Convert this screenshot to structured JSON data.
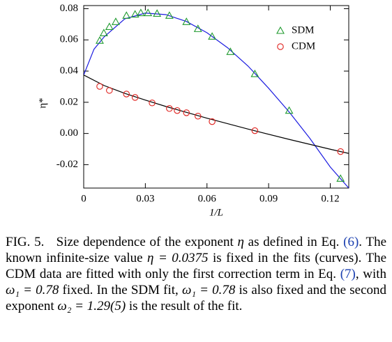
{
  "chart_data": {
    "type": "scatter",
    "xlabel": "1/L",
    "ylabel": "η*",
    "xlim": [
      0,
      0.129
    ],
    "ylim": [
      -0.035,
      0.082
    ],
    "xticks": [
      0,
      0.03,
      0.06,
      0.09,
      0.12
    ],
    "yticks": [
      -0.02,
      {
        "value": 0,
        "label": "0.00"
      },
      0.02,
      0.04,
      0.06,
      0.08
    ],
    "legend": "upper right",
    "series": [
      {
        "name": "SDM",
        "color": "#1f9a2e",
        "marker": "triangle",
        "x": [
          0.0078,
          0.0098,
          0.0125,
          0.0156,
          0.0208,
          0.025,
          0.0278,
          0.0313,
          0.0357,
          0.0417,
          0.05,
          0.0556,
          0.0625,
          0.0714,
          0.0833,
          0.1,
          0.125
        ],
        "values": [
          0.0596,
          0.0644,
          0.0684,
          0.0716,
          0.0756,
          0.0764,
          0.0773,
          0.0773,
          0.0769,
          0.0756,
          0.0716,
          0.0671,
          0.0622,
          0.0524,
          0.0382,
          0.0147,
          -0.0289
        ]
      },
      {
        "name": "CDM",
        "color": "#e0201c",
        "marker": "circle",
        "x": [
          0.0078,
          0.0125,
          0.0208,
          0.025,
          0.0333,
          0.0417,
          0.0455,
          0.05,
          0.0556,
          0.0625,
          0.0833,
          0.125
        ],
        "values": [
          0.0302,
          0.0276,
          0.0253,
          0.0231,
          0.0196,
          0.016,
          0.0147,
          0.0133,
          0.0111,
          0.0076,
          0.0018,
          -0.0116
        ]
      }
    ],
    "fits": [
      {
        "color": "#1c1ce0",
        "x": [
          0,
          0.005,
          0.01,
          0.02,
          0.03,
          0.04,
          0.05,
          0.06,
          0.07,
          0.08,
          0.09,
          0.1,
          0.11,
          0.12,
          0.129
        ],
        "values": [
          0.0375,
          0.054,
          0.062,
          0.0735,
          0.0772,
          0.0762,
          0.0718,
          0.0646,
          0.055,
          0.0432,
          0.029,
          0.0138,
          -0.003,
          -0.0215,
          -0.035
        ]
      },
      {
        "color": "#000000",
        "x": [
          0,
          0.01,
          0.02,
          0.03,
          0.04,
          0.06,
          0.08,
          0.1,
          0.12,
          0.129
        ],
        "values": [
          0.0375,
          0.0307,
          0.0257,
          0.0214,
          0.0173,
          0.0098,
          0.0028,
          -0.0038,
          -0.0101,
          -0.0128
        ]
      }
    ]
  },
  "caption": {
    "label": "FIG. 5.",
    "parts": [
      "Size dependence of the exponent ",
      "η",
      " as defined in Eq. ",
      "(6)",
      ". The known infinite-size value ",
      "η = 0.0375",
      " is fixed in the fits (curves). The CDM data are fitted with only the first correction term in Eq. ",
      "(7)",
      ", with ",
      "ω₁ = 0.78",
      " fixed. In the SDM fit, ",
      "ω₁ = 0.78",
      " is also fixed and the second exponent ",
      "ω₂ = 1.29(5)",
      " is the result of the fit."
    ]
  }
}
